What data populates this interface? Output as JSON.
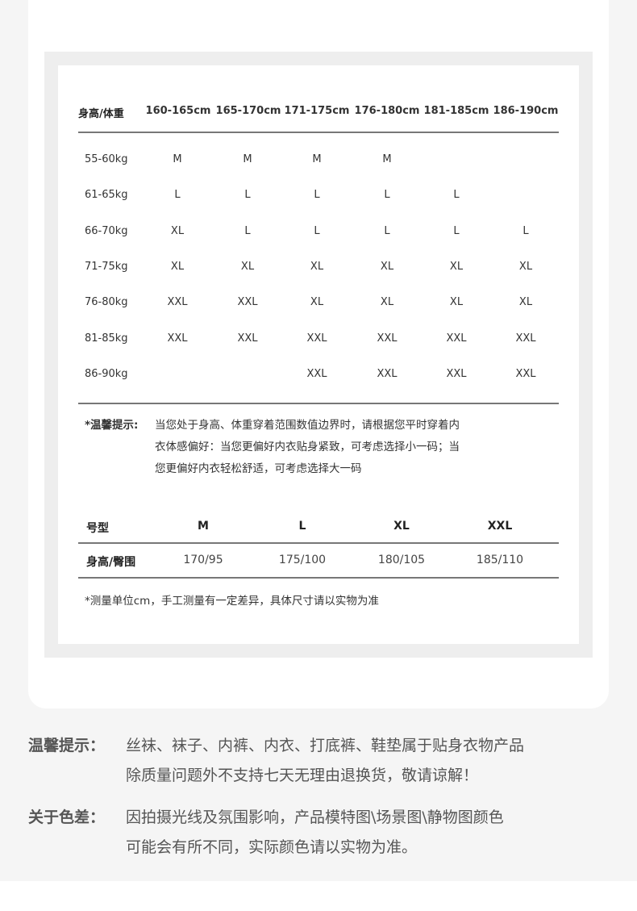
{
  "grid": {
    "corner": "身高/体重",
    "heights": [
      "160-165cm",
      "165-170cm",
      "171-175cm",
      "176-180cm",
      "181-185cm",
      "186-190cm"
    ],
    "rows": [
      {
        "weight": "55-60kg",
        "sizes": [
          "M",
          "M",
          "M",
          "M",
          "",
          ""
        ]
      },
      {
        "weight": "61-65kg",
        "sizes": [
          "L",
          "L",
          "L",
          "L",
          "L",
          ""
        ]
      },
      {
        "weight": "66-70kg",
        "sizes": [
          "XL",
          "L",
          "L",
          "L",
          "L",
          "L"
        ]
      },
      {
        "weight": "71-75kg",
        "sizes": [
          "XL",
          "XL",
          "XL",
          "XL",
          "XL",
          "XL"
        ]
      },
      {
        "weight": "76-80kg",
        "sizes": [
          "XXL",
          "XXL",
          "XL",
          "XL",
          "XL",
          "XL"
        ]
      },
      {
        "weight": "81-85kg",
        "sizes": [
          "XXL",
          "XXL",
          "XXL",
          "XXL",
          "XXL",
          "XXL"
        ]
      },
      {
        "weight": "86-90kg",
        "sizes": [
          "",
          "",
          "XXL",
          "XXL",
          "XXL",
          "XXL"
        ]
      }
    ]
  },
  "tip": {
    "label": "*温馨提示:",
    "lines": [
      "当您处于身高、体重穿着范围数值边界时，请根据您平时穿着内",
      "衣体感偏好：当您更偏好内衣贴身紧致，可考虑选择小一码；当",
      "您更偏好内衣轻松舒适，可考虑选择大一码"
    ]
  },
  "size_table": {
    "header_label": "号型",
    "sizes": [
      "M",
      "L",
      "XL",
      "XXL"
    ],
    "row_label": "身高/臀围",
    "values": [
      "170/95",
      "175/100",
      "180/105",
      "185/110"
    ]
  },
  "note": "*测量单位cm，手工测量有一定差异，具体尺寸请以实物为准",
  "footer": [
    {
      "label": "温馨提示：",
      "lines": [
        "丝袜、袜子、内裤、内衣、打底裤、鞋垫属于贴身衣物产品",
        "除质量问题外不支持七天无理由退换货，敬请谅解！"
      ]
    },
    {
      "label": "关于色差：",
      "lines": [
        "因拍摄光线及氛围影响，产品模特图\\场景图\\静物图颜色",
        "可能会有所不同，实际颜色请以实物为准。"
      ]
    }
  ]
}
